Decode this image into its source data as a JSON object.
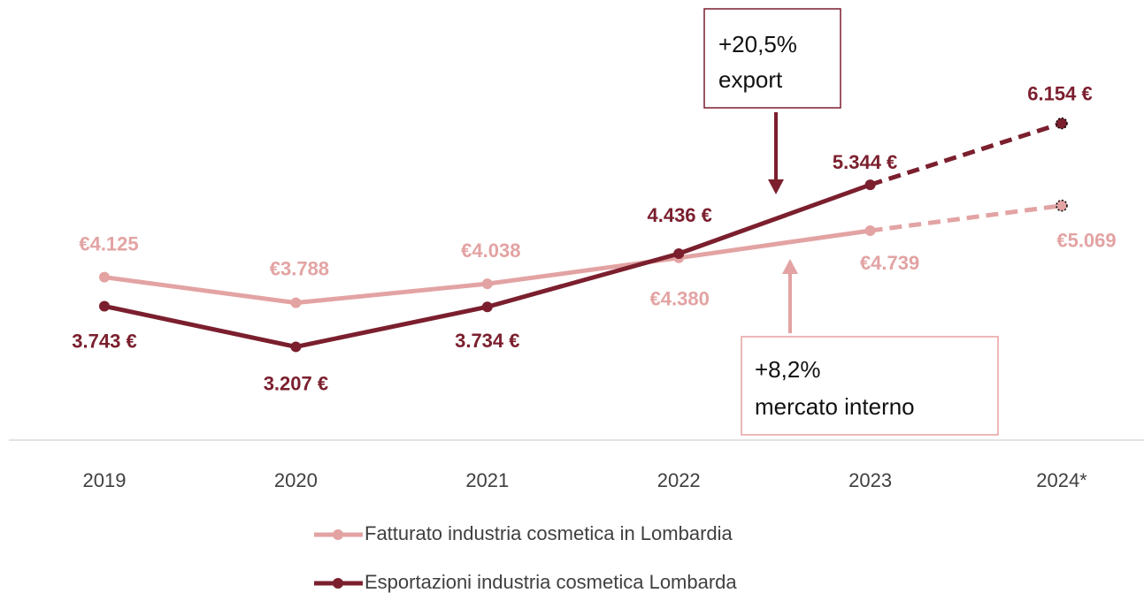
{
  "chart_data": {
    "type": "line",
    "categories": [
      "2019",
      "2020",
      "2021",
      "2022",
      "2023",
      "2024*"
    ],
    "series": [
      {
        "name": "Fatturato industria cosmetica in Lombardia",
        "color": "#e3a3a3",
        "values": [
          4125,
          3788,
          4038,
          4380,
          4739,
          5069
        ],
        "value_labels": [
          "€4.125",
          "€3.788",
          "€4.038",
          "€4.380",
          "€4.739",
          "€5.069"
        ]
      },
      {
        "name": "Esportazioni industria cosmetica Lombarda",
        "color": "#7b1f2e",
        "values": [
          3743,
          3207,
          3734,
          4436,
          5344,
          6154
        ],
        "value_labels": [
          "3.743 €",
          "3.207 €",
          "3.734 €",
          "4.436 €",
          "5.344 €",
          "6.154 €"
        ]
      }
    ],
    "ylim": [
      2000,
      7000
    ],
    "annotations": [
      {
        "lines": [
          "+20,5%",
          "export"
        ]
      },
      {
        "lines": [
          "+8,2%",
          "mercato interno"
        ]
      }
    ],
    "legend": "bottom"
  }
}
